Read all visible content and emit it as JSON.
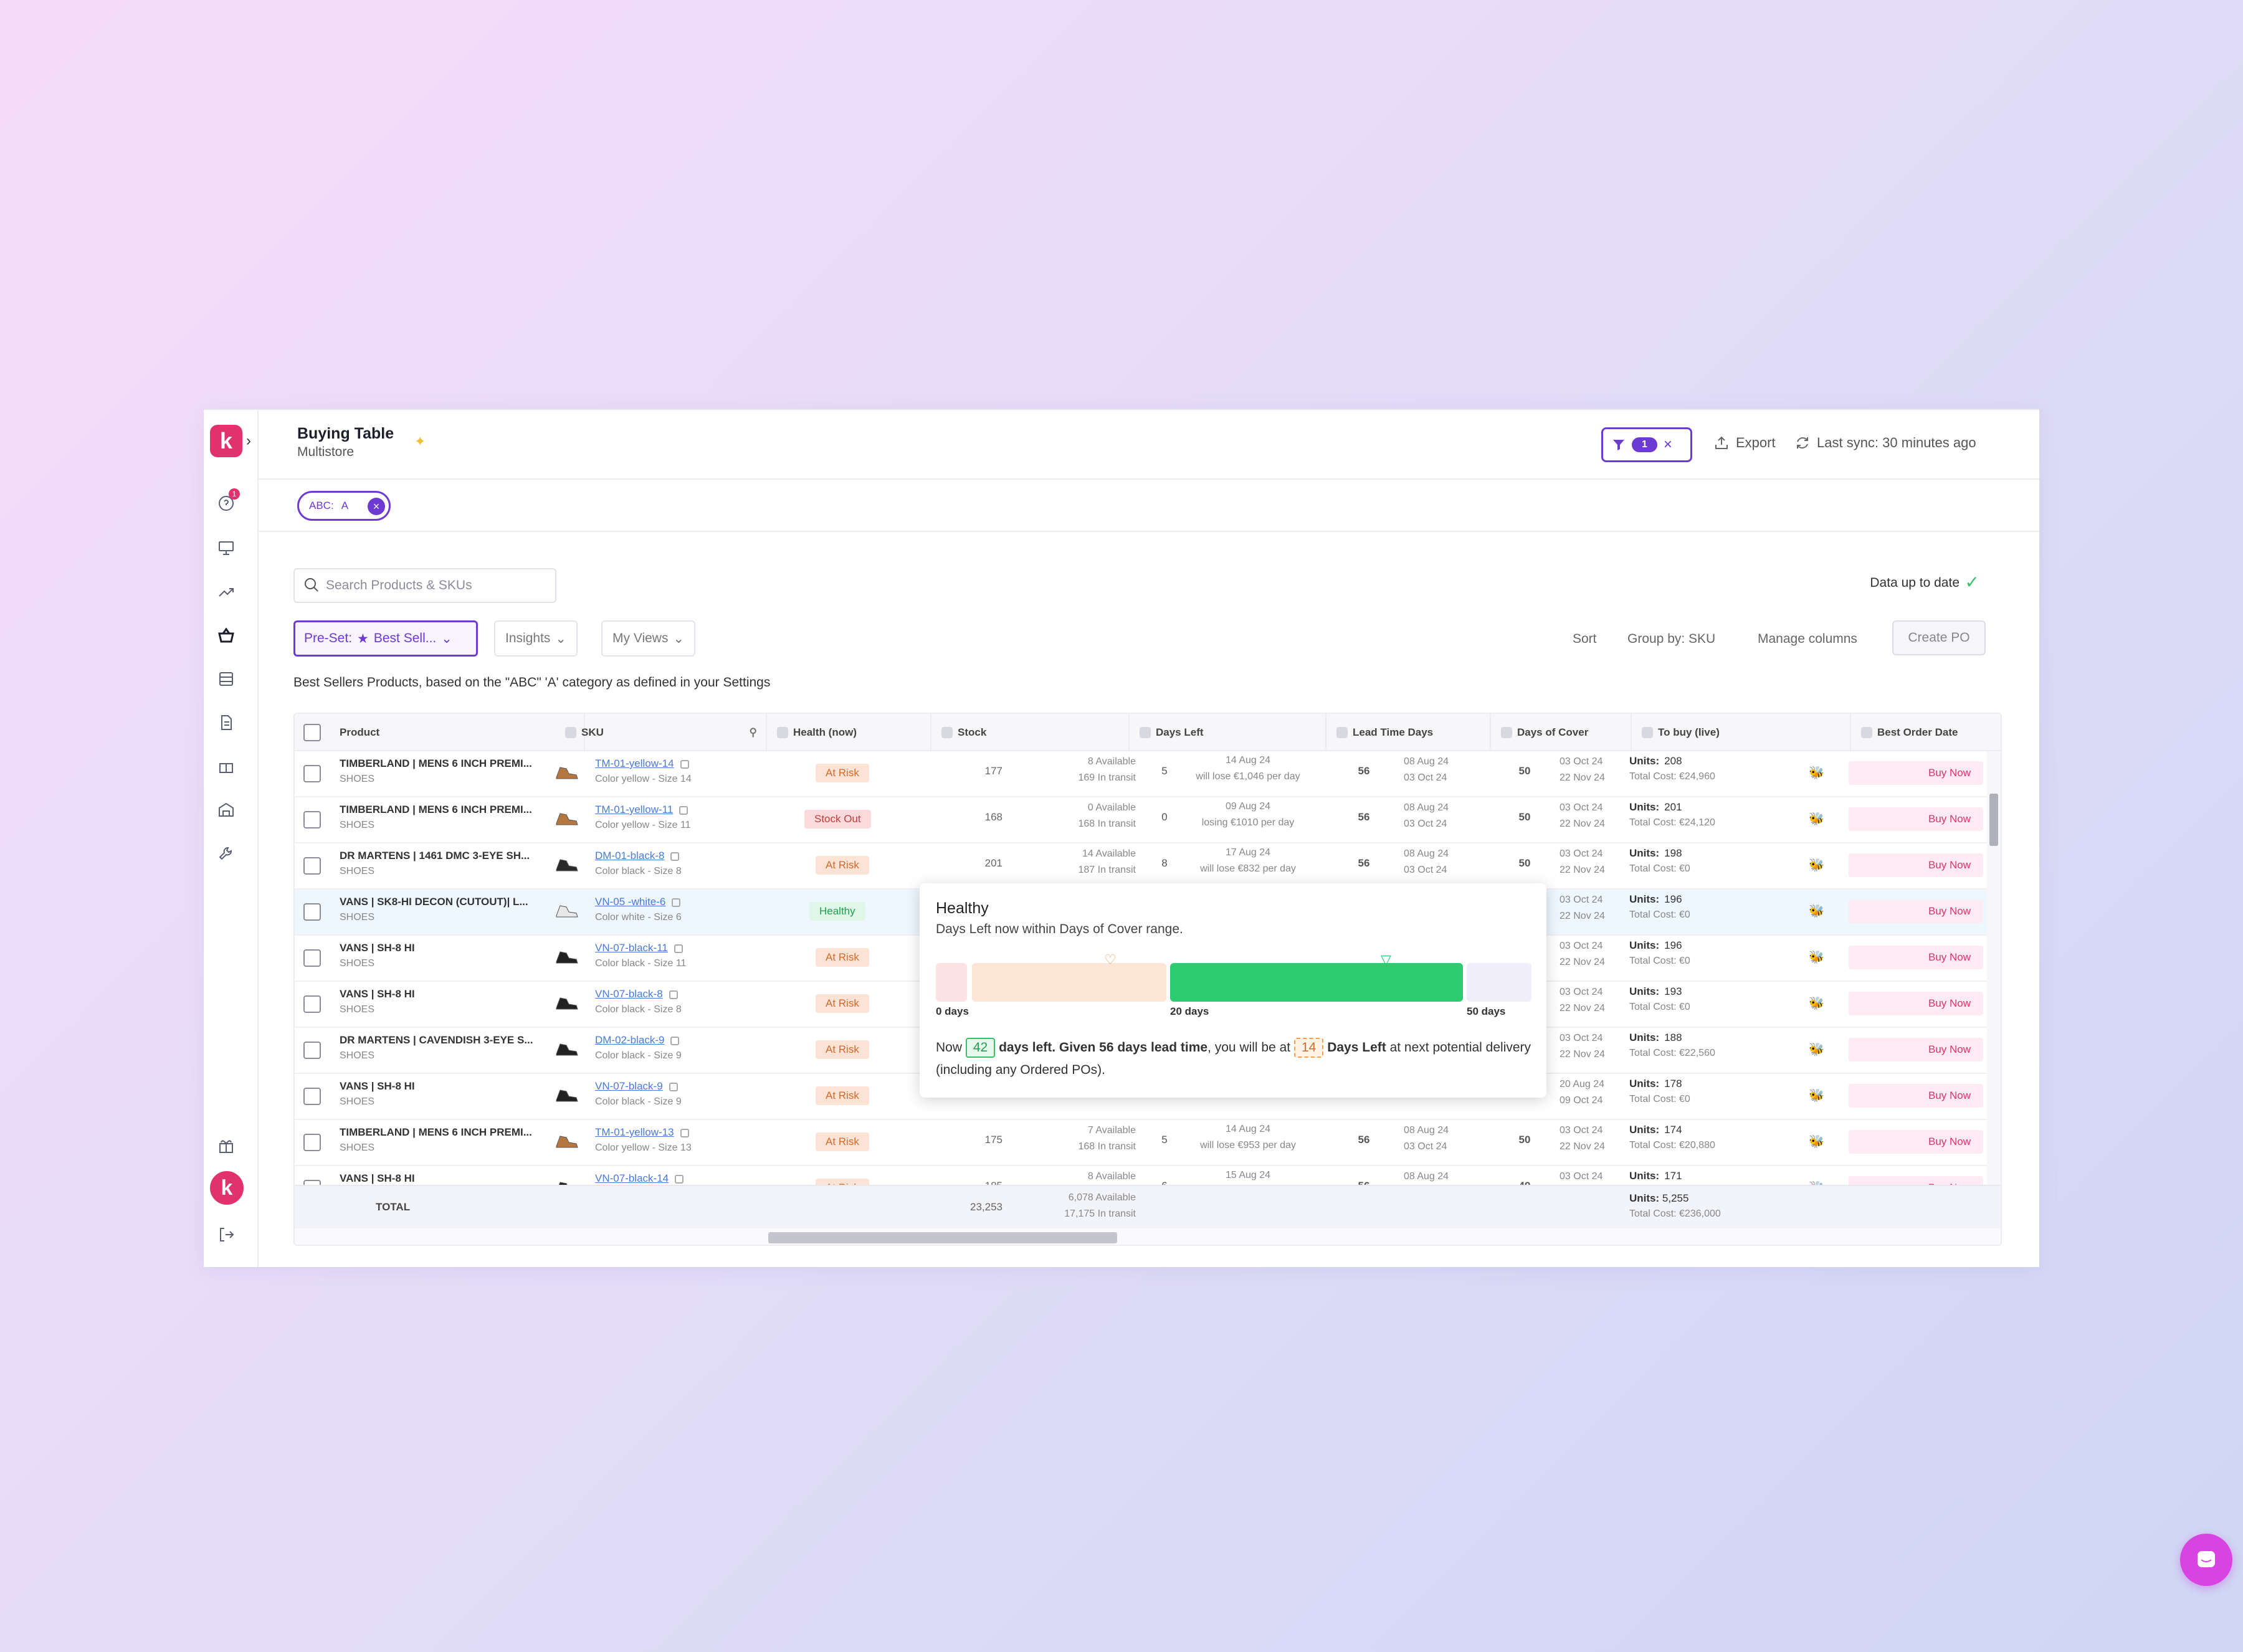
{
  "header": {
    "title": "Buying Table",
    "subtitle": "Multistore",
    "filter_count": "1",
    "export_label": "Export",
    "sync_label": "Last sync: 30 minutes ago"
  },
  "chip": {
    "label": "ABC:",
    "value": "A"
  },
  "toolbar": {
    "search_placeholder": "Search Products & SKUs",
    "status": "Data up to date",
    "preset": "Pre-Set:",
    "preset_value": "Best Sell...",
    "insights": "Insights",
    "my_views": "My Views",
    "sort": "Sort",
    "group_by": "Group by: SKU",
    "manage_columns": "Manage columns",
    "create_po": "Create PO",
    "description": "Best Sellers Products, based on the \"ABC\" 'A' category as defined in your Settings"
  },
  "columns": [
    "Product",
    "SKU",
    "Health (now)",
    "Stock",
    "Days Left",
    "Lead Time Days",
    "Days of Cover",
    "To buy (live)",
    "Best Order Date"
  ],
  "rows": [
    {
      "product": "TIMBERLAND | MENS 6 INCH PREMI...",
      "category": "SHOES",
      "sku": "TM-01-yellow-14",
      "variant": "Color yellow - Size 14",
      "health": "At Risk",
      "stock": "177",
      "available": "8 Available",
      "transit": "169 In transit",
      "days_left": "5",
      "dl_date": "14 Aug 24",
      "dl_note": "will lose €1,046 per day",
      "lead": "56",
      "lead_d1": "08 Aug 24",
      "lead_d2": "03 Oct 24",
      "cover": "50",
      "cover_d1": "03 Oct 24",
      "cover_d2": "22 Nov 24",
      "units": "208",
      "cost": "Total Cost: €24,960",
      "buy": "Buy Now"
    },
    {
      "product": "TIMBERLAND | MENS 6 INCH PREMI...",
      "category": "SHOES",
      "sku": "TM-01-yellow-11",
      "variant": "Color yellow - Size 11",
      "health": "Stock Out",
      "stock": "168",
      "available": "0 Available",
      "transit": "168 In transit",
      "days_left": "0",
      "dl_date": "09 Aug 24",
      "dl_note": "losing €1010 per day",
      "lead": "56",
      "lead_d1": "08 Aug 24",
      "lead_d2": "03 Oct 24",
      "cover": "50",
      "cover_d1": "03 Oct 24",
      "cover_d2": "22 Nov 24",
      "units": "201",
      "cost": "Total Cost: €24,120",
      "buy": "Buy Now"
    },
    {
      "product": "DR MARTENS | 1461 DMC 3-EYE SH...",
      "category": "SHOES",
      "sku": "DM-01-black-8",
      "variant": "Color black - Size 8",
      "health": "At Risk",
      "stock": "201",
      "available": "14 Available",
      "transit": "187 In transit",
      "days_left": "8",
      "dl_date": "17 Aug 24",
      "dl_note": "will lose €832 per day",
      "lead": "56",
      "lead_d1": "08 Aug 24",
      "lead_d2": "03 Oct 24",
      "cover": "50",
      "cover_d1": "03 Oct 24",
      "cover_d2": "22 Nov 24",
      "units": "198",
      "cost": "Total Cost: €0",
      "buy": "Buy Now"
    },
    {
      "product": "VANS | SK8-HI DECON (CUTOUT)| L...",
      "category": "SHOES",
      "sku": "VN-05 -white-6",
      "variant": "Color white - Size 6",
      "health": "Healthy",
      "cover_d1": "03 Oct 24",
      "cover_d2": "22 Nov 24",
      "units": "196",
      "cost": "Total Cost: €0",
      "buy": "Buy Now"
    },
    {
      "product": "VANS | SH-8 HI",
      "category": "SHOES",
      "sku": "VN-07-black-11",
      "variant": "Color black - Size 11",
      "health": "At Risk",
      "cover_d1": "03 Oct 24",
      "cover_d2": "22 Nov 24",
      "units": "196",
      "cost": "Total Cost: €0",
      "buy": "Buy Now"
    },
    {
      "product": "VANS | SH-8 HI",
      "category": "SHOES",
      "sku": "VN-07-black-8",
      "variant": "Color black - Size 8",
      "health": "At Risk",
      "cover_d1": "03 Oct 24",
      "cover_d2": "22 Nov 24",
      "units": "193",
      "cost": "Total Cost: €0",
      "buy": "Buy Now"
    },
    {
      "product": "DR MARTENS | CAVENDISH 3-EYE S...",
      "category": "SHOES",
      "sku": "DM-02-black-9",
      "variant": "Color black - Size 9",
      "health": "At Risk",
      "cover_d1": "03 Oct 24",
      "cover_d2": "22 Nov 24",
      "units": "188",
      "cost": "Total Cost: €22,560",
      "buy": "Buy Now"
    },
    {
      "product": "VANS | SH-8 HI",
      "category": "SHOES",
      "sku": "VN-07-black-9",
      "variant": "Color black - Size 9",
      "health": "At Risk",
      "cover_d1": "20 Aug 24",
      "cover_d2": "09 Oct 24",
      "units": "178",
      "cost": "Total Cost: €0",
      "buy": "Buy Now"
    },
    {
      "product": "TIMBERLAND | MENS 6 INCH PREMI...",
      "category": "SHOES",
      "sku": "TM-01-yellow-13",
      "variant": "Color yellow - Size 13",
      "health": "At Risk",
      "stock": "175",
      "available": "7 Available",
      "transit": "168 In transit",
      "days_left": "5",
      "dl_date": "14 Aug 24",
      "dl_note": "will lose €953 per day",
      "lead": "56",
      "lead_d1": "08 Aug 24",
      "lead_d2": "03 Oct 24",
      "cover": "50",
      "cover_d1": "03 Oct 24",
      "cover_d2": "22 Nov 24",
      "units": "174",
      "cost": "Total Cost: €20,880",
      "buy": "Buy Now"
    },
    {
      "product": "VANS | SH-8 HI",
      "category": "",
      "sku": "VN-07-black-14",
      "variant": "",
      "health": "At Risk",
      "stock": "185",
      "available": "8 Available",
      "transit": "",
      "days_left": "6",
      "dl_date": "15 Aug 24",
      "dl_note": "",
      "lead": "56",
      "lead_d1": "08 Aug 24",
      "lead_d2": "",
      "cover": "49",
      "cover_d1": "03 Oct 24",
      "cover_d2": "",
      "units": "171",
      "cost": "",
      "buy": "Buy Now"
    }
  ],
  "totals": {
    "label": "TOTAL",
    "stock": "23,253",
    "available": "6,078 Available",
    "transit": "17,175 In transit",
    "units": "5,255",
    "cost": "Total Cost: €236,000"
  },
  "tooltip": {
    "title": "Healthy",
    "subtitle": "Days Left now within Days of Cover range.",
    "label_0": "0 days",
    "label_20": "20 days",
    "label_50": "50 days",
    "now": "Now",
    "days_left_value": "42",
    "days_left_text": "days left. Given",
    "lead_text": "56 days lead time",
    "mid_text": ", you will be at",
    "future_value": "14",
    "future_label": "Days Left",
    "tail_text": "at next potential delivery (including any Ordered POs)."
  },
  "colors": {
    "accent": "#6d3ad4",
    "brand": "#e2326d",
    "healthy": "#2ecc71",
    "risk": "#d46a2a"
  }
}
